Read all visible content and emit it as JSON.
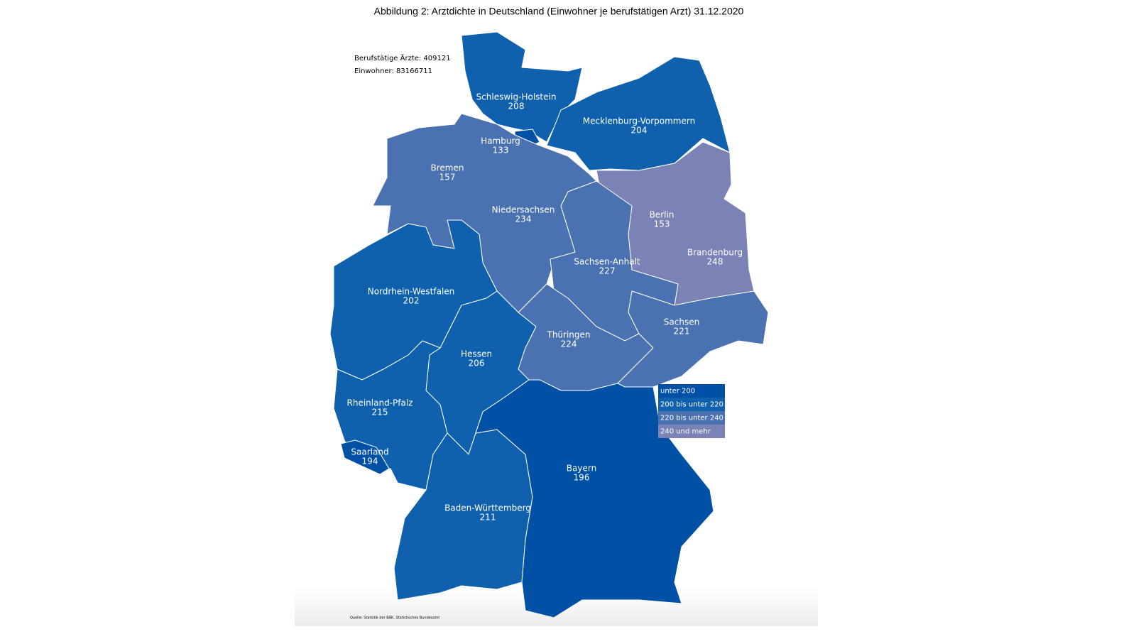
{
  "title": "Abbildung 2: Arztdichte in Deutschland (Einwohner je berufstätigen Arzt) 31.12.2020",
  "info": [
    "Berufstätige Ärzte: 409121",
    "Einwohner: 83166711"
  ],
  "regions": [
    {
      "name": "Schleswig-Holstein",
      "value": 208,
      "color": "#0f61ad"
    },
    {
      "name": "Mecklenburg-Vorpommern",
      "value": 204,
      "color": "#0f61ad"
    },
    {
      "name": "Hamburg",
      "value": 133,
      "color": "#0050a5"
    },
    {
      "name": "Bremen",
      "value": 157,
      "color": "#0050a5"
    },
    {
      "name": "Niedersachsen",
      "value": 234,
      "color": "#4a72b0"
    },
    {
      "name": "Berlin",
      "value": 153,
      "color": "#0050a5"
    },
    {
      "name": "Brandenburg",
      "value": 248,
      "color": "#7a82b6"
    },
    {
      "name": "Sachsen-Anhalt",
      "value": 227,
      "color": "#4a72b0"
    },
    {
      "name": "Nordrhein-Westfalen",
      "value": 202,
      "color": "#0f61ad"
    },
    {
      "name": "Hessen",
      "value": 206,
      "color": "#0f61ad"
    },
    {
      "name": "Thüringen",
      "value": 224,
      "color": "#4a72b0"
    },
    {
      "name": "Sachsen",
      "value": 221,
      "color": "#4a72b0"
    },
    {
      "name": "Rheinland-Pfalz",
      "value": 215,
      "color": "#0f61ad"
    },
    {
      "name": "Saarland",
      "value": 194,
      "color": "#0050a5"
    },
    {
      "name": "Baden-Württemberg",
      "value": 211,
      "color": "#0f61ad"
    },
    {
      "name": "Bayern",
      "value": 196,
      "color": "#0050a5"
    }
  ],
  "legend": [
    {
      "label": "unter 200",
      "color": "#0050a5"
    },
    {
      "label": "200 bis unter 220",
      "color": "#0f61ad"
    },
    {
      "label": "220 bis unter 240",
      "color": "#4a72b0"
    },
    {
      "label": "240 und mehr",
      "color": "#7a82b6"
    }
  ],
  "source": "Quelle: Statistik der BÄK, Statistisches Bundesamt"
}
